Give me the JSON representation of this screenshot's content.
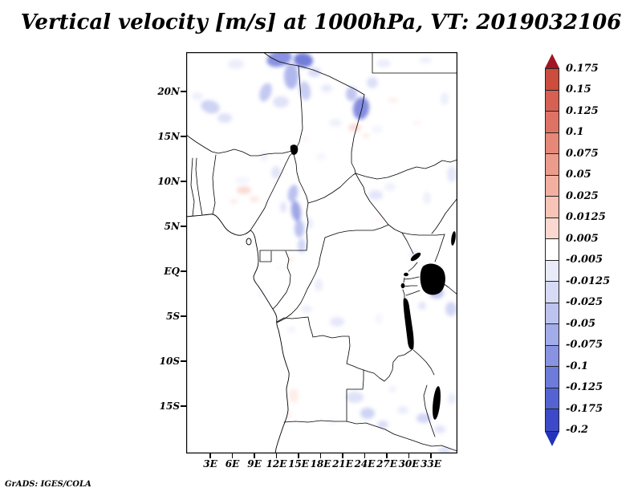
{
  "title": "Vertical velocity [m/s] at 1000hPa, VT: 2019032106",
  "credit": "GrADS: IGES/COLA",
  "chart_data": {
    "type": "heatmap",
    "subtype": "filled-contour-map-over-political-map",
    "title": "Vertical velocity [m/s] at 1000hPa, VT: 2019032106",
    "variable": "Vertical velocity",
    "units": "m/s",
    "level": "1000hPa",
    "valid_time": "2019032106",
    "region": "Central Africa (approx 0E-36E, 20S-24N)",
    "grid": false,
    "x_axis": {
      "axis": "longitude",
      "ticks": [
        "3E",
        "6E",
        "9E",
        "12E",
        "15E",
        "18E",
        "21E",
        "24E",
        "27E",
        "30E",
        "33E"
      ],
      "tick_step_deg": 3
    },
    "y_axis": {
      "axis": "latitude",
      "ticks": [
        "20N",
        "15N",
        "10N",
        "5N",
        "EQ",
        "5S",
        "10S",
        "15S"
      ],
      "tick_step_deg": 5
    },
    "colorbar": {
      "orientation": "vertical",
      "position": "right",
      "labels": [
        "0.175",
        "0.15",
        "0.125",
        "0.1",
        "0.075",
        "0.05",
        "0.025",
        "0.0125",
        "0.005",
        "-0.005",
        "-0.0125",
        "-0.025",
        "-0.05",
        "-0.075",
        "-0.1",
        "-0.125",
        "-0.175",
        "-0.2"
      ],
      "colors_top_to_bottom": [
        "#a01622",
        "#cc4c3e",
        "#d66052",
        "#de7365",
        "#e68878",
        "#ed9c8c",
        "#f3b0a1",
        "#f8c4b7",
        "#fbd8cf",
        "#ffffff",
        "#e9ebf9",
        "#d6daf5",
        "#bcc3ef",
        "#a2ace9",
        "#8893e2",
        "#6e7bda",
        "#5463d2",
        "#3c4aca",
        "#2433b8"
      ]
    },
    "field_summary": {
      "dominant": "near-zero values (white) over most of the domain",
      "negative_patches": "blue/purple patches (about -0.005 to -0.1 m/s) over northern Chad/Tibesti, the Sahel near 20N, western Sudan, the Cameroon highlands band, east of Lake Victoria, and across Zambia/Angola in the south",
      "positive_patches": "faint pink patches (about 0.005 to 0.05 m/s) over southern Nigeria, central Sudan and coastal Angola"
    }
  }
}
